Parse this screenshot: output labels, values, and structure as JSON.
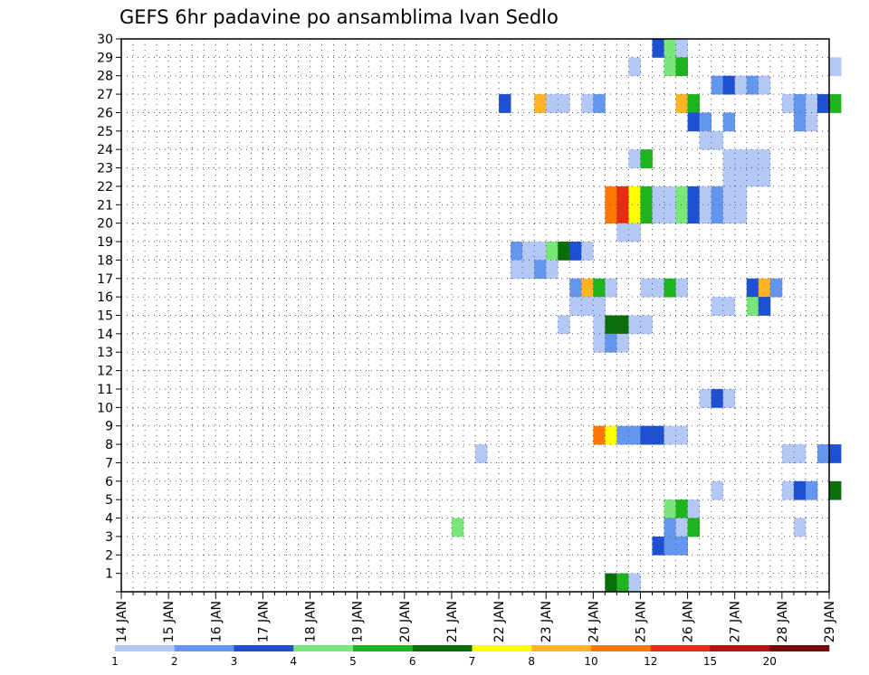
{
  "chart_data": {
    "type": "heatmap",
    "title": "GEFS 6hr padavine po ansamblima Ivan Sedlo",
    "x_tick_labels": [
      "14 JAN",
      "15 JAN",
      "16 JAN",
      "17 JAN",
      "18 JAN",
      "19 JAN",
      "20 JAN",
      "21 JAN",
      "22 JAN",
      "23 JAN",
      "24 JAN",
      "25 JAN",
      "26 JAN",
      "27 JAN",
      "28 JAN",
      "29 JAN"
    ],
    "y_tick_labels": [
      "1",
      "2",
      "3",
      "4",
      "5",
      "6",
      "7",
      "8",
      "9",
      "10",
      "11",
      "12",
      "13",
      "14",
      "15",
      "16",
      "17",
      "18",
      "19",
      "20",
      "21",
      "22",
      "23",
      "24",
      "25",
      "26",
      "27",
      "28",
      "29",
      "30"
    ],
    "ylim": [
      0,
      30
    ],
    "steps_per_day": 4,
    "grid": true,
    "legend": {
      "position": "bottom",
      "labels": [
        "1",
        "2",
        "3",
        "4",
        "5",
        "6",
        "7",
        "8",
        "10",
        "12",
        "15",
        "20"
      ],
      "colors": [
        "#b4c8f5",
        "#6496f0",
        "#1e50d2",
        "#78e678",
        "#1eb41e",
        "#0a6e0a",
        "#ffff00",
        "#ffb428",
        "#ff7800",
        "#e62d14",
        "#b41414",
        "#780a0a"
      ]
    },
    "cells": [
      [
        29,
        45,
        3
      ],
      [
        29,
        46,
        4
      ],
      [
        29,
        47,
        1
      ],
      [
        28,
        43,
        1
      ],
      [
        28,
        46,
        4
      ],
      [
        28,
        47,
        5
      ],
      [
        28,
        60,
        1
      ],
      [
        27,
        50,
        2
      ],
      [
        27,
        51,
        3
      ],
      [
        27,
        52,
        1
      ],
      [
        27,
        53,
        2
      ],
      [
        27,
        54,
        1
      ],
      [
        26,
        32,
        3
      ],
      [
        26,
        35,
        9
      ],
      [
        26,
        36,
        1
      ],
      [
        26,
        37,
        1
      ],
      [
        26,
        39,
        1
      ],
      [
        26,
        40,
        2
      ],
      [
        26,
        47,
        9
      ],
      [
        26,
        48,
        5
      ],
      [
        26,
        56,
        1
      ],
      [
        26,
        57,
        2
      ],
      [
        26,
        58,
        1
      ],
      [
        26,
        59,
        3
      ],
      [
        26,
        60,
        5
      ],
      [
        25,
        48,
        3
      ],
      [
        25,
        49,
        2
      ],
      [
        25,
        51,
        2
      ],
      [
        25,
        57,
        2
      ],
      [
        25,
        58,
        1
      ],
      [
        24,
        49,
        1
      ],
      [
        24,
        50,
        1
      ],
      [
        23,
        43,
        1
      ],
      [
        23,
        44,
        5
      ],
      [
        23,
        51,
        1
      ],
      [
        23,
        52,
        1
      ],
      [
        23,
        53,
        1
      ],
      [
        23,
        54,
        1
      ],
      [
        22,
        51,
        1
      ],
      [
        22,
        52,
        1
      ],
      [
        22,
        53,
        1
      ],
      [
        22,
        54,
        1
      ],
      [
        21,
        41,
        10
      ],
      [
        21,
        42,
        12
      ],
      [
        21,
        43,
        7
      ],
      [
        21,
        44,
        5
      ],
      [
        21,
        45,
        1
      ],
      [
        21,
        46,
        1
      ],
      [
        21,
        47,
        4
      ],
      [
        21,
        48,
        3
      ],
      [
        21,
        49,
        1
      ],
      [
        21,
        50,
        2
      ],
      [
        21,
        51,
        1
      ],
      [
        21,
        52,
        1
      ],
      [
        20,
        41,
        10
      ],
      [
        20,
        42,
        12
      ],
      [
        20,
        43,
        7
      ],
      [
        20,
        44,
        5
      ],
      [
        20,
        45,
        1
      ],
      [
        20,
        46,
        1
      ],
      [
        20,
        47,
        4
      ],
      [
        20,
        48,
        3
      ],
      [
        20,
        49,
        1
      ],
      [
        20,
        50,
        2
      ],
      [
        20,
        51,
        1
      ],
      [
        20,
        52,
        1
      ],
      [
        19,
        42,
        1
      ],
      [
        19,
        43,
        1
      ],
      [
        18,
        33,
        2
      ],
      [
        18,
        34,
        1
      ],
      [
        18,
        35,
        1
      ],
      [
        18,
        36,
        4
      ],
      [
        18,
        37,
        6
      ],
      [
        18,
        38,
        3
      ],
      [
        18,
        39,
        1
      ],
      [
        17,
        33,
        1
      ],
      [
        17,
        34,
        1
      ],
      [
        17,
        35,
        2
      ],
      [
        17,
        36,
        1
      ],
      [
        16,
        38,
        2
      ],
      [
        16,
        39,
        8
      ],
      [
        16,
        40,
        5
      ],
      [
        16,
        41,
        1
      ],
      [
        16,
        44,
        1
      ],
      [
        16,
        45,
        1
      ],
      [
        16,
        46,
        5
      ],
      [
        16,
        47,
        1
      ],
      [
        16,
        53,
        3
      ],
      [
        16,
        54,
        8
      ],
      [
        16,
        55,
        2
      ],
      [
        15,
        38,
        1
      ],
      [
        15,
        39,
        1
      ],
      [
        15,
        40,
        1
      ],
      [
        15,
        50,
        1
      ],
      [
        15,
        51,
        1
      ],
      [
        15,
        53,
        4
      ],
      [
        15,
        54,
        3
      ],
      [
        14,
        37,
        1
      ],
      [
        14,
        40,
        1
      ],
      [
        14,
        41,
        6
      ],
      [
        14,
        42,
        6
      ],
      [
        14,
        43,
        1
      ],
      [
        14,
        44,
        1
      ],
      [
        13,
        40,
        1
      ],
      [
        13,
        41,
        2
      ],
      [
        13,
        42,
        1
      ],
      [
        10,
        49,
        1
      ],
      [
        10,
        50,
        3
      ],
      [
        10,
        51,
        1
      ],
      [
        8,
        40,
        11
      ],
      [
        8,
        41,
        7
      ],
      [
        8,
        42,
        2
      ],
      [
        8,
        43,
        2
      ],
      [
        8,
        44,
        3
      ],
      [
        8,
        45,
        3
      ],
      [
        8,
        46,
        1
      ],
      [
        8,
        47,
        1
      ],
      [
        7,
        30,
        1
      ],
      [
        7,
        56,
        1
      ],
      [
        7,
        57,
        1
      ],
      [
        7,
        59,
        2
      ],
      [
        7,
        60,
        3
      ],
      [
        5,
        50,
        1
      ],
      [
        5,
        56,
        1
      ],
      [
        5,
        57,
        3
      ],
      [
        5,
        58,
        2
      ],
      [
        5,
        60,
        6
      ],
      [
        4,
        46,
        4
      ],
      [
        4,
        47,
        5
      ],
      [
        4,
        48,
        1
      ],
      [
        3,
        28,
        4
      ],
      [
        3,
        46,
        2
      ],
      [
        3,
        47,
        1
      ],
      [
        3,
        48,
        5
      ],
      [
        3,
        57,
        1
      ],
      [
        2,
        45,
        3
      ],
      [
        2,
        46,
        2
      ],
      [
        2,
        47,
        2
      ],
      [
        0,
        41,
        6
      ],
      [
        0,
        42,
        5
      ],
      [
        0,
        43,
        1
      ]
    ]
  }
}
